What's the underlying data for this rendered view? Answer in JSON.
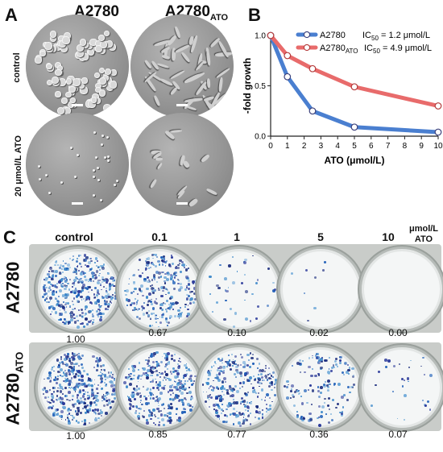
{
  "panel_a": {
    "letter": "A",
    "col1": "A2780",
    "col2_base": "A2780",
    "col2_sub": "ATO",
    "row1": "control",
    "row2": "20 μmol/L ATO"
  },
  "panel_b": {
    "letter": "B"
  },
  "panel_c": {
    "letter": "C",
    "concentrations": [
      "control",
      "0.1",
      "1",
      "5",
      "10"
    ],
    "unit_line1": "μmol/L",
    "unit_line2": "ATO",
    "row1_label": "A2780",
    "row2_label_base": "A2780",
    "row2_label_sub": "ATO",
    "row1_values": [
      "1.00",
      "0.67",
      "0.10",
      "0.02",
      "0.00"
    ],
    "row2_values": [
      "1.00",
      "0.85",
      "0.77",
      "0.36",
      "0.07"
    ],
    "row1_density": [
      1.0,
      0.67,
      0.1,
      0.02,
      0.0
    ],
    "row2_density": [
      1.0,
      0.85,
      0.77,
      0.36,
      0.07
    ]
  },
  "chart_data": {
    "type": "line",
    "xlabel": "ATO (μmol/L)",
    "ylabel": "-fold growth",
    "xlim": [
      0,
      10
    ],
    "ylim": [
      0,
      1.0
    ],
    "xticks": [
      "0",
      "1",
      "2",
      "3",
      "4",
      "5",
      "6",
      "7",
      "8",
      "9",
      "10"
    ],
    "yticks": [
      "0.0",
      "0.5",
      "1.0"
    ],
    "legend_position": "top-right",
    "series": [
      {
        "name": "A2780",
        "ic50_label": "IC",
        "ic50_sub": "50",
        "ic50_value": "= 1.2 μmol/L",
        "color": "#4a7fd0",
        "x": [
          0,
          1,
          2.5,
          5,
          10
        ],
        "y": [
          1.0,
          0.59,
          0.25,
          0.09,
          0.04
        ]
      },
      {
        "name": "A2780",
        "name_sub": "ATO",
        "ic50_label": "IC",
        "ic50_sub": "50",
        "ic50_value": "= 4.9 μmol/L",
        "color": "#e86b6b",
        "x": [
          0,
          1,
          2.5,
          5,
          10
        ],
        "y": [
          1.0,
          0.8,
          0.67,
          0.49,
          0.3
        ]
      }
    ]
  }
}
